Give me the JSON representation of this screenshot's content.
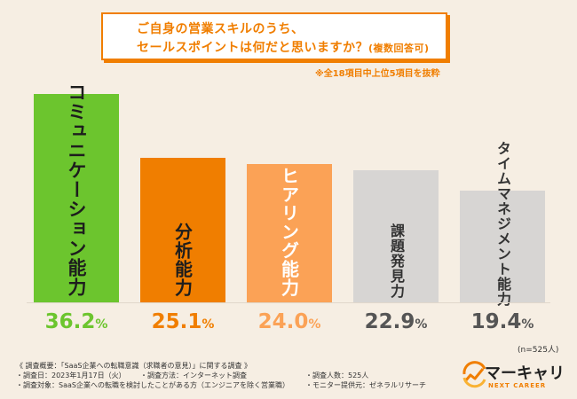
{
  "header": {
    "title_line1": "ご自身の営業スキルのうち、",
    "title_line2_main": "セールスポイントは何だと思いますか？",
    "title_line2_sub": "(複数回答可)",
    "note": "※全18項目中上位5項目を抜粋"
  },
  "chart_data": {
    "type": "bar",
    "title": "ご自身の営業スキルのうち、セールスポイントは何だと思いますか？(複数回答可)",
    "categories": [
      "コミュニケーション能力",
      "分析能力",
      "ヒアリング能力",
      "課題発見力",
      "タイムマネジメント能力"
    ],
    "values": [
      36.2,
      25.1,
      24.0,
      22.9,
      19.4
    ],
    "value_display": [
      {
        "num": "36.2",
        "unit": "%"
      },
      {
        "num": "25.1",
        "unit": "%"
      },
      {
        "num": "24.0",
        "unit": "%"
      },
      {
        "num": "22.9",
        "unit": "%"
      },
      {
        "num": "19.4",
        "unit": "%"
      }
    ],
    "bar_colors": [
      "#6cc52e",
      "#f07e00",
      "#fba256",
      "#d7d5d3",
      "#d7d5d3"
    ],
    "label_colors": [
      "#1d1d1d",
      "#1d1d1d",
      "#ffffff",
      "#333333",
      "#333333"
    ],
    "value_colors": [
      "#6cc52e",
      "#f07e00",
      "#fba256",
      "#555555",
      "#555555"
    ],
    "ylim": [
      0,
      36.2
    ],
    "xlabel": "",
    "ylabel": "",
    "sample_size": "(n=525人)"
  },
  "survey": {
    "overview": "《 調査概要：「SaaS企業への転職意識（求職者の意見）」に関する調査 》",
    "date": "・調査日：2023年1月17日（火）",
    "method": "・調査方法：インターネット調査",
    "count": "・調査人数：525人",
    "target": "・調査対象：SaaS企業への転職を検討したことがある方（エンジニアを除く営業職）",
    "provider": "・モニター提供元：ゼネラルリサーチ"
  },
  "logo": {
    "text": "マーキャリ",
    "sub": "NEXT CAREER",
    "icon": "growth-chart-logo-icon"
  }
}
